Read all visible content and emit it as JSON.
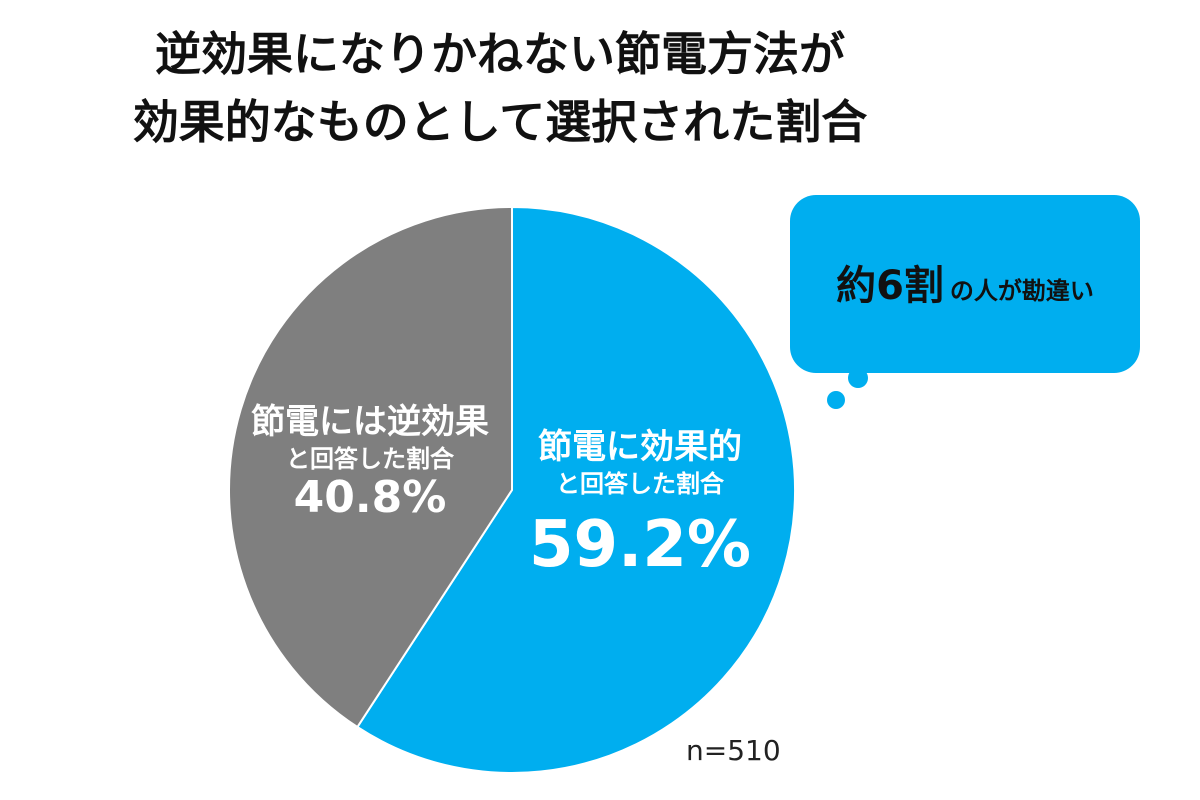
{
  "title": {
    "line1": "逆効果になりかねない節電方法が",
    "line2": "効果的なものとして選択された割合"
  },
  "chart_data": {
    "type": "pie",
    "title": "逆効果になりかねない節電方法が効果的なものとして選択された割合",
    "slices": [
      {
        "label_line1": "節電に効果的",
        "label_line2": "と回答した割合",
        "value": 59.2,
        "value_text": "59.2%",
        "color": "#00aeef"
      },
      {
        "label_line1": "節電には逆効果",
        "label_line2": "と回答した割合",
        "value": 40.8,
        "value_text": "40.8%",
        "color": "#7f7f7f"
      }
    ],
    "sample_size": "n=510"
  },
  "callout": {
    "big1": "約6割",
    "small": "の人が勘違い",
    "color": "#00aeef"
  }
}
